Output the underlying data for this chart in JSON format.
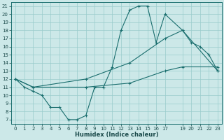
{
  "xlabel": "Humidex (Indice chaleur)",
  "bg_color": "#cce8e8",
  "grid_color": "#99cccc",
  "line_color": "#1a6e6e",
  "xlim": [
    -0.5,
    23.5
  ],
  "ylim": [
    6.5,
    21.5
  ],
  "xticks": [
    0,
    1,
    2,
    3,
    4,
    5,
    6,
    7,
    8,
    9,
    10,
    11,
    12,
    13,
    14,
    15,
    16,
    17,
    19,
    20,
    21,
    22,
    23
  ],
  "yticks": [
    7,
    8,
    9,
    10,
    11,
    12,
    13,
    14,
    15,
    16,
    17,
    18,
    19,
    20,
    21
  ],
  "line1_x": [
    0,
    1,
    2,
    3,
    4,
    5,
    6,
    7,
    8,
    9,
    10,
    11,
    12,
    13,
    14,
    15,
    16,
    17,
    19,
    20,
    21,
    22,
    23
  ],
  "line1_y": [
    12,
    11,
    10.5,
    10,
    8.5,
    8.5,
    7,
    7,
    7.5,
    11,
    11,
    13.5,
    18,
    20.5,
    21,
    21,
    16.5,
    20,
    18,
    16.5,
    16,
    15,
    13
  ],
  "line2_x": [
    0,
    2,
    8,
    13,
    17,
    19,
    23
  ],
  "line2_y": [
    12,
    11,
    12,
    14,
    17,
    18,
    13
  ],
  "line3_x": [
    0,
    2,
    8,
    13,
    17,
    19,
    23
  ],
  "line3_y": [
    12,
    11,
    11,
    11.5,
    13,
    13.5,
    13.5
  ]
}
